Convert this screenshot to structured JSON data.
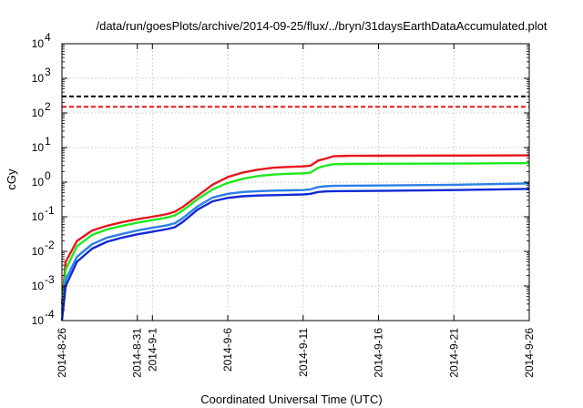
{
  "chart_data": {
    "type": "line",
    "title": "/data/run/goesPlots/archive/2014-09-25/flux/../bryn/31daysEarthDataAccumulated.plot",
    "xlabel": "Coordinated Universal Time (UTC)",
    "ylabel": "cGy",
    "y_scale": "log",
    "ylim": [
      0.0001,
      10000
    ],
    "xlim": [
      "2014-08-26",
      "2014-09-26"
    ],
    "grid": true,
    "legend": "none",
    "y_ticks": [
      {
        "value": 0.0001,
        "base": "10",
        "exp": "-4"
      },
      {
        "value": 0.001,
        "base": "10",
        "exp": "-3"
      },
      {
        "value": 0.01,
        "base": "10",
        "exp": "-2"
      },
      {
        "value": 0.1,
        "base": "10",
        "exp": "-1"
      },
      {
        "value": 1,
        "base": "10",
        "exp": "0"
      },
      {
        "value": 10,
        "base": "10",
        "exp": "1"
      },
      {
        "value": 100,
        "base": "10",
        "exp": "2"
      },
      {
        "value": 1000,
        "base": "10",
        "exp": "3"
      },
      {
        "value": 10000,
        "base": "10",
        "exp": "4"
      }
    ],
    "x_ticks": [
      {
        "date": "2014-08-26",
        "label": "2014-8-26"
      },
      {
        "date": "2014-08-31",
        "label": "2014-8-31"
      },
      {
        "date": "2014-09-01",
        "label": "2014-9-1"
      },
      {
        "date": "2014-09-06",
        "label": "2014-9-6"
      },
      {
        "date": "2014-09-11",
        "label": "2014-9-11"
      },
      {
        "date": "2014-09-16",
        "label": "2014-9-16"
      },
      {
        "date": "2014-09-21",
        "label": "2014-9-21"
      },
      {
        "date": "2014-09-26",
        "label": "2014-9-26"
      }
    ],
    "thresholds": [
      {
        "value": 300,
        "color": "#000000"
      },
      {
        "value": 150,
        "color": "#e8141c"
      }
    ],
    "series": [
      {
        "color": "#e8141c",
        "points": [
          [
            "2014-08-26",
            0.0003
          ],
          [
            "2014-08-26T06:00",
            0.005
          ],
          [
            "2014-08-27",
            0.02
          ],
          [
            "2014-08-28",
            0.04
          ],
          [
            "2014-08-29",
            0.055
          ],
          [
            "2014-08-30",
            0.07
          ],
          [
            "2014-08-31",
            0.085
          ],
          [
            "2014-09-01",
            0.1
          ],
          [
            "2014-09-02",
            0.12
          ],
          [
            "2014-09-02T12:00",
            0.14
          ],
          [
            "2014-09-03",
            0.19
          ],
          [
            "2014-09-04",
            0.4
          ],
          [
            "2014-09-05",
            0.85
          ],
          [
            "2014-09-06",
            1.4
          ],
          [
            "2014-09-07",
            1.9
          ],
          [
            "2014-09-08",
            2.3
          ],
          [
            "2014-09-09",
            2.6
          ],
          [
            "2014-09-10",
            2.75
          ],
          [
            "2014-09-11",
            2.85
          ],
          [
            "2014-09-11T12:00",
            3.0
          ],
          [
            "2014-09-12",
            4.2
          ],
          [
            "2014-09-12T12:00",
            4.8
          ],
          [
            "2014-09-13",
            5.6
          ],
          [
            "2014-09-14",
            5.75
          ],
          [
            "2014-09-16",
            5.8
          ],
          [
            "2014-09-21",
            5.85
          ],
          [
            "2014-09-26",
            5.95
          ]
        ]
      },
      {
        "color": "#1ee81e",
        "points": [
          [
            "2014-08-26",
            0.0002
          ],
          [
            "2014-08-26T06:00",
            0.003
          ],
          [
            "2014-08-27",
            0.014
          ],
          [
            "2014-08-28",
            0.03
          ],
          [
            "2014-08-29",
            0.043
          ],
          [
            "2014-08-30",
            0.055
          ],
          [
            "2014-08-31",
            0.067
          ],
          [
            "2014-09-01",
            0.08
          ],
          [
            "2014-09-02",
            0.095
          ],
          [
            "2014-09-02T12:00",
            0.11
          ],
          [
            "2014-09-03",
            0.15
          ],
          [
            "2014-09-04",
            0.32
          ],
          [
            "2014-09-05",
            0.62
          ],
          [
            "2014-09-06",
            0.95
          ],
          [
            "2014-09-07",
            1.25
          ],
          [
            "2014-09-08",
            1.5
          ],
          [
            "2014-09-09",
            1.65
          ],
          [
            "2014-09-10",
            1.75
          ],
          [
            "2014-09-11",
            1.8
          ],
          [
            "2014-09-11T12:00",
            1.9
          ],
          [
            "2014-09-12",
            2.6
          ],
          [
            "2014-09-12T12:00",
            3.0
          ],
          [
            "2014-09-13",
            3.3
          ],
          [
            "2014-09-14",
            3.35
          ],
          [
            "2014-09-16",
            3.4
          ],
          [
            "2014-09-21",
            3.45
          ],
          [
            "2014-09-26",
            3.55
          ]
        ]
      },
      {
        "color": "#2a7fe6",
        "points": [
          [
            "2014-08-26",
            0.00015
          ],
          [
            "2014-08-26T06:00",
            0.0015
          ],
          [
            "2014-08-27",
            0.007
          ],
          [
            "2014-08-28",
            0.016
          ],
          [
            "2014-08-29",
            0.025
          ],
          [
            "2014-08-30",
            0.032
          ],
          [
            "2014-08-31",
            0.04
          ],
          [
            "2014-09-01",
            0.048
          ],
          [
            "2014-09-02",
            0.057
          ],
          [
            "2014-09-02T12:00",
            0.065
          ],
          [
            "2014-09-03",
            0.09
          ],
          [
            "2014-09-04",
            0.2
          ],
          [
            "2014-09-05",
            0.36
          ],
          [
            "2014-09-06",
            0.46
          ],
          [
            "2014-09-07",
            0.52
          ],
          [
            "2014-09-08",
            0.55
          ],
          [
            "2014-09-09",
            0.57
          ],
          [
            "2014-09-10",
            0.58
          ],
          [
            "2014-09-11",
            0.59
          ],
          [
            "2014-09-11T12:00",
            0.62
          ],
          [
            "2014-09-12",
            0.72
          ],
          [
            "2014-09-12T12:00",
            0.76
          ],
          [
            "2014-09-13",
            0.78
          ],
          [
            "2014-09-16",
            0.8
          ],
          [
            "2014-09-21",
            0.84
          ],
          [
            "2014-09-26",
            0.92
          ]
        ]
      },
      {
        "color": "#0f2ad4",
        "points": [
          [
            "2014-08-26",
            0.0001
          ],
          [
            "2014-08-26T06:00",
            0.001
          ],
          [
            "2014-08-27",
            0.005
          ],
          [
            "2014-08-28",
            0.012
          ],
          [
            "2014-08-29",
            0.019
          ],
          [
            "2014-08-30",
            0.025
          ],
          [
            "2014-08-31",
            0.031
          ],
          [
            "2014-09-01",
            0.037
          ],
          [
            "2014-09-02",
            0.044
          ],
          [
            "2014-09-02T12:00",
            0.05
          ],
          [
            "2014-09-03",
            0.07
          ],
          [
            "2014-09-04",
            0.16
          ],
          [
            "2014-09-05",
            0.28
          ],
          [
            "2014-09-06",
            0.35
          ],
          [
            "2014-09-07",
            0.39
          ],
          [
            "2014-09-08",
            0.41
          ],
          [
            "2014-09-09",
            0.42
          ],
          [
            "2014-09-10",
            0.43
          ],
          [
            "2014-09-11",
            0.44
          ],
          [
            "2014-09-11T12:00",
            0.46
          ],
          [
            "2014-09-12",
            0.52
          ],
          [
            "2014-09-12T12:00",
            0.54
          ],
          [
            "2014-09-13",
            0.55
          ],
          [
            "2014-09-16",
            0.56
          ],
          [
            "2014-09-21",
            0.59
          ],
          [
            "2014-09-26",
            0.64
          ]
        ]
      }
    ]
  }
}
